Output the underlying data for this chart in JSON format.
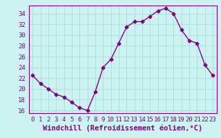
{
  "x": [
    0,
    1,
    2,
    3,
    4,
    5,
    6,
    7,
    8,
    9,
    10,
    11,
    12,
    13,
    14,
    15,
    16,
    17,
    18,
    19,
    20,
    21,
    22,
    23
  ],
  "y": [
    22.5,
    21.0,
    20.0,
    19.0,
    18.5,
    17.5,
    16.5,
    16.0,
    19.5,
    24.0,
    25.5,
    28.5,
    31.5,
    32.5,
    32.5,
    33.5,
    34.5,
    35.0,
    34.0,
    31.0,
    29.0,
    28.5,
    24.5,
    22.5
  ],
  "line_color": "#800080",
  "marker": "D",
  "marker_size": 2.5,
  "bg_color": "#ccf2f2",
  "grid_color": "#aadddd",
  "xlabel": "Windchill (Refroidissement éolien,°C)",
  "ylabel": "",
  "xlim": [
    -0.5,
    23.5
  ],
  "ylim": [
    15.5,
    35.5
  ],
  "yticks": [
    16,
    18,
    20,
    22,
    24,
    26,
    28,
    30,
    32,
    34
  ],
  "xticks": [
    0,
    1,
    2,
    3,
    4,
    5,
    6,
    7,
    8,
    9,
    10,
    11,
    12,
    13,
    14,
    15,
    16,
    17,
    18,
    19,
    20,
    21,
    22,
    23
  ],
  "tick_color": "#800080",
  "label_color": "#800080",
  "font_size": 6.5,
  "xlabel_fontsize": 7.5,
  "line_width": 1.0
}
